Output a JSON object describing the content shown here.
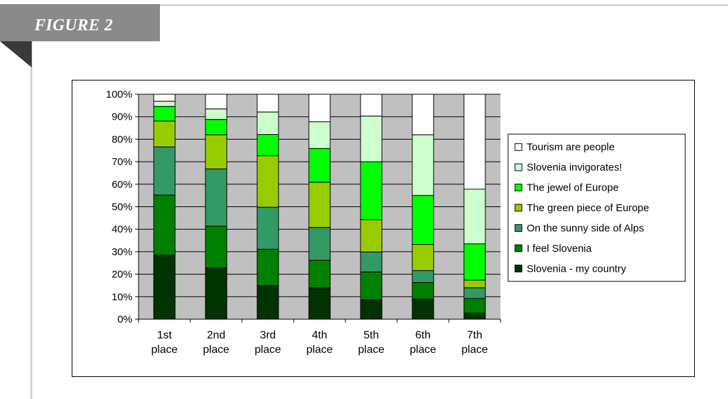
{
  "figure": {
    "label": "FIGURE 2"
  },
  "chart_data": {
    "type": "bar",
    "stacked": true,
    "percent": true,
    "categories": [
      "1st place",
      "2nd place",
      "3rd place",
      "4th place",
      "5th place",
      "6th place",
      "7th place"
    ],
    "category_lines": [
      [
        "1st",
        "place"
      ],
      [
        "2nd",
        "place"
      ],
      [
        "3rd",
        "place"
      ],
      [
        "4th",
        "place"
      ],
      [
        "5th",
        "place"
      ],
      [
        "6th",
        "place"
      ],
      [
        "7th",
        "place"
      ]
    ],
    "y_ticks": [
      "0%",
      "10%",
      "20%",
      "30%",
      "40%",
      "50%",
      "60%",
      "70%",
      "80%",
      "90%",
      "100%"
    ],
    "ylim": [
      0,
      100
    ],
    "grid": true,
    "plot_background": "#c0c0c0",
    "legend_position": "right",
    "series": [
      {
        "name": "Slovenia - my country",
        "color": "#003300",
        "values": [
          28.5,
          22.8,
          14.9,
          13.9,
          8.6,
          8.9,
          2.7
        ]
      },
      {
        "name": "I feel Slovenia",
        "color": "#008000",
        "values": [
          26.7,
          18.6,
          16.2,
          12.3,
          12.4,
          7.4,
          6.5
        ]
      },
      {
        "name": "On the sunny side of Alps",
        "color": "#339966",
        "values": [
          21.4,
          25.4,
          18.7,
          14.6,
          8.9,
          5.3,
          4.8
        ]
      },
      {
        "name": "The green piece of Europe",
        "color": "#99cc00",
        "values": [
          11.5,
          15.2,
          22.9,
          20.1,
          14.3,
          11.6,
          3.4
        ]
      },
      {
        "name": "The jewel of Europe",
        "color": "#00ff00",
        "values": [
          6.5,
          6.8,
          9.4,
          15.0,
          25.8,
          21.8,
          16.1
        ]
      },
      {
        "name": "Slovenia invigorates!",
        "color": "#ccffcc",
        "values": [
          2.3,
          4.7,
          10.0,
          11.9,
          20.3,
          27.0,
          24.3
        ]
      },
      {
        "name": "Tourism are people",
        "color": "#ffffff",
        "values": [
          3.1,
          6.5,
          7.9,
          12.2,
          9.7,
          18.0,
          42.2
        ]
      }
    ]
  }
}
